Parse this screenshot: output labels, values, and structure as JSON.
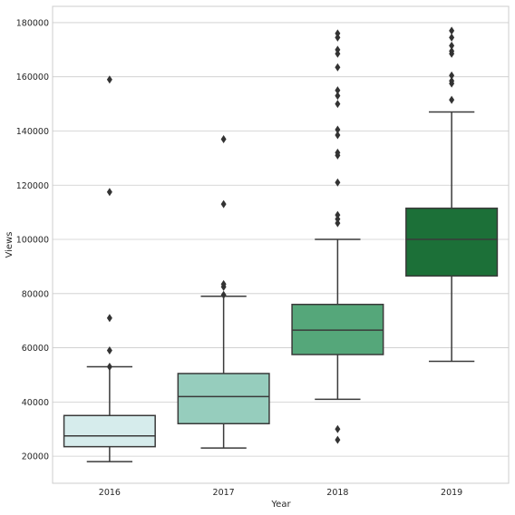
{
  "chart_data": {
    "type": "boxplot",
    "title": "",
    "xlabel": "Year",
    "ylabel": "Views",
    "categories": [
      "2016",
      "2017",
      "2018",
      "2019"
    ],
    "ylim": [
      10000,
      186000
    ],
    "yticks": [
      20000,
      40000,
      60000,
      80000,
      100000,
      120000,
      140000,
      160000,
      180000
    ],
    "ytick_labels": [
      "20000",
      "40000",
      "60000",
      "80000",
      "100000",
      "120000",
      "140000",
      "160000",
      "180000"
    ],
    "grid": true,
    "boxes": [
      {
        "category": "2016",
        "whisker_low": 18000,
        "q1": 23500,
        "median": 27500,
        "q3": 35000,
        "whisker_high": 53000,
        "outliers": [
          53000,
          59000,
          71000,
          117500,
          159000
        ],
        "color": "#d6ecec"
      },
      {
        "category": "2017",
        "whisker_low": 23000,
        "q1": 32000,
        "median": 42000,
        "q3": 50500,
        "whisker_high": 79000,
        "outliers": [
          79500,
          82500,
          83500,
          113000,
          137000
        ],
        "color": "#96cdbd"
      },
      {
        "category": "2018",
        "whisker_low": 41000,
        "q1": 57500,
        "median": 66500,
        "q3": 76000,
        "whisker_high": 100000,
        "outliers": [
          26000,
          30000,
          106000,
          107500,
          109000,
          121000,
          131000,
          132000,
          138500,
          140500,
          150000,
          153000,
          155000,
          163500,
          168500,
          170000,
          174500,
          176000
        ],
        "color": "#55a77a"
      },
      {
        "category": "2019",
        "whisker_low": 55000,
        "q1": 86500,
        "median": 100000,
        "q3": 111500,
        "whisker_high": 147000,
        "outliers": [
          151500,
          157500,
          158500,
          160500,
          168500,
          169500,
          171500,
          174500,
          177000
        ],
        "color": "#1c7038"
      }
    ]
  }
}
